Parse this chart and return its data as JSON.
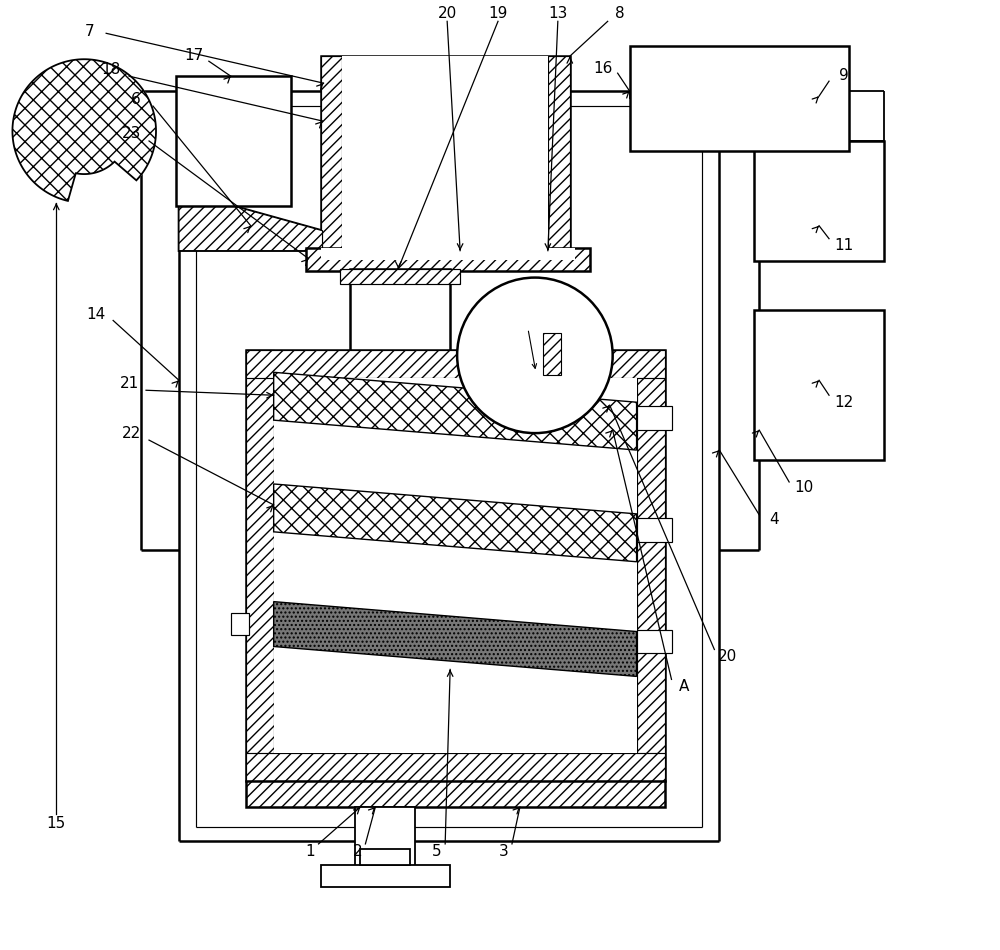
{
  "bg": "#ffffff",
  "lc": "#000000",
  "fw": 10.0,
  "fh": 9.5,
  "dpi": 100,
  "lw": 1.3,
  "lw_thick": 1.8,
  "lw_thin": 0.85,
  "fs": 11
}
